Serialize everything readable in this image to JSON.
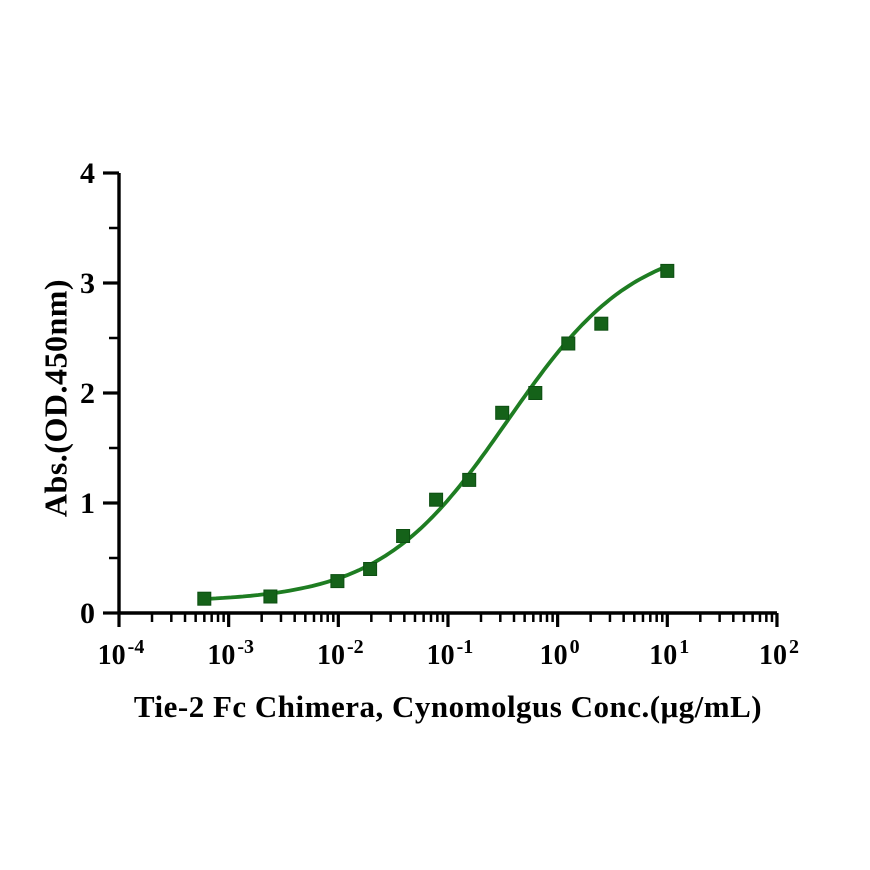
{
  "figure": {
    "background_color": "#ffffff",
    "axis_color": "#000000"
  },
  "chart_data": {
    "type": "scatter",
    "title": "",
    "xlabel": "Tie-2 Fc Chimera, Cynomolgus Conc.(μg/mL)",
    "ylabel": "Abs.(OD.450nm)",
    "x_scale": "log10",
    "x_tick_base": "10",
    "x_tick_exponents": [
      -4,
      -3,
      -2,
      -1,
      0,
      1,
      2
    ],
    "x_minor_multiples": [
      2,
      3,
      4,
      5,
      6,
      7,
      8,
      9
    ],
    "xlim_exponents": [
      -4,
      2
    ],
    "ylim": [
      0,
      4
    ],
    "y_major_ticks": [
      "0",
      "1",
      "2",
      "3",
      "4"
    ],
    "y_minor_ticks": [
      0.5,
      1.5,
      2.5,
      3.5
    ],
    "grid": false,
    "legend": "none",
    "series": [
      {
        "name": "Tie-2 Fc Chimera, Cynomolgus",
        "marker": "square",
        "line_color": "#1E7D22",
        "marker_color": "#156219",
        "x": [
          0.0006,
          0.0024,
          0.0098,
          0.0195,
          0.039,
          0.078,
          0.156,
          0.3125,
          0.625,
          1.25,
          2.5,
          10
        ],
        "y": [
          0.13,
          0.15,
          0.29,
          0.4,
          0.7,
          1.03,
          1.21,
          1.82,
          2.0,
          2.45,
          2.63,
          3.11
        ]
      }
    ],
    "fit_curve": {
      "model": "4PL",
      "bottom": 0.1,
      "top": 3.4,
      "ec50": 0.35,
      "hill": 0.75,
      "x_start": 0.0006,
      "x_end": 10
    }
  }
}
